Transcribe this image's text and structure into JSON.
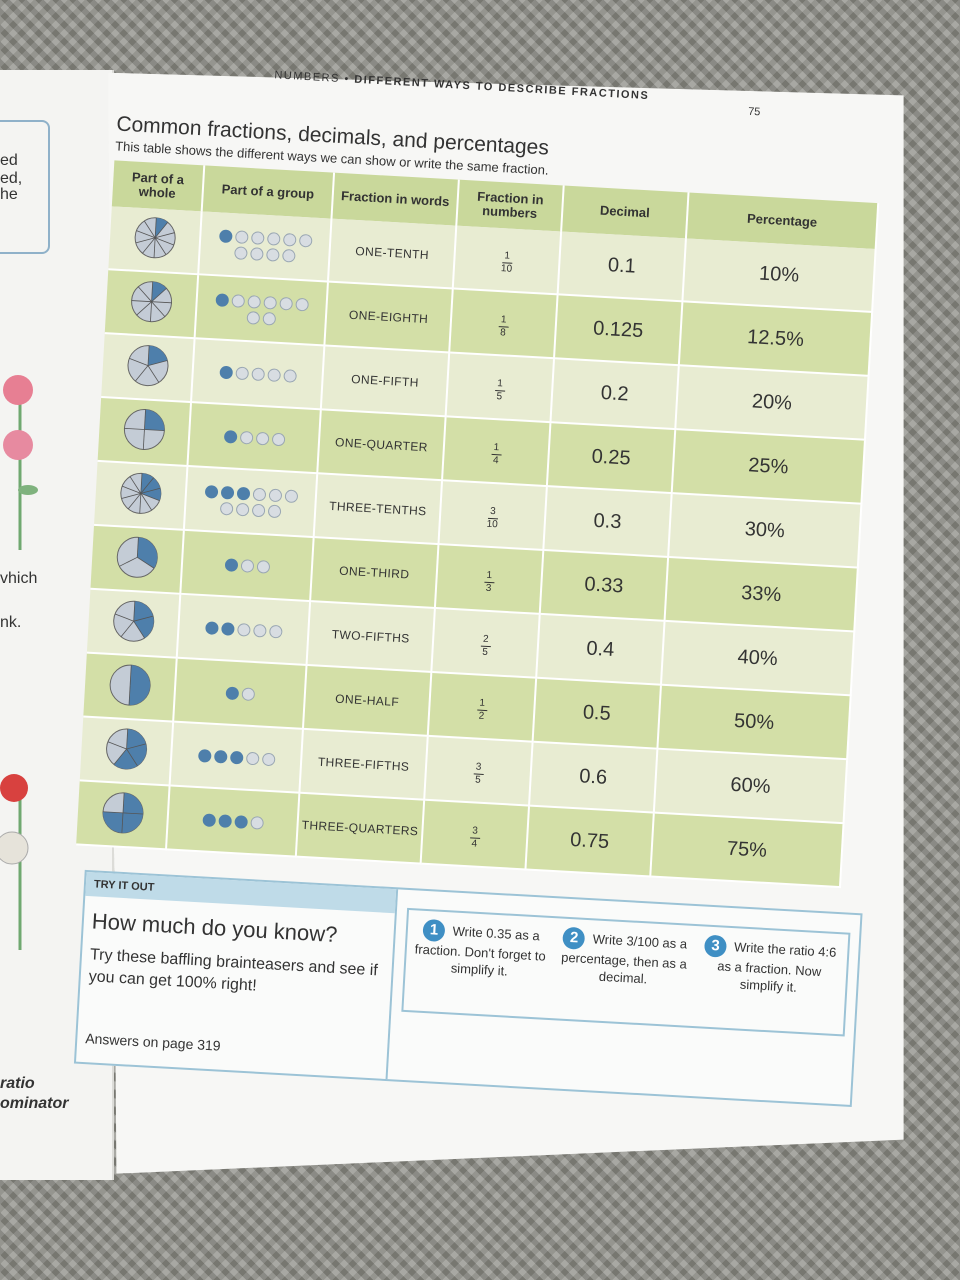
{
  "header": {
    "section": "NUMBERS",
    "separator": "•",
    "topic": "DIFFERENT WAYS TO DESCRIBE FRACTIONS",
    "page_number": "75"
  },
  "title": "Common fractions, decimals, and percentages",
  "subtitle": "This table shows the different ways we can show or write the same fraction.",
  "table": {
    "columns": [
      "Part of a whole",
      "Part of a group",
      "Fraction in words",
      "Fraction in numbers",
      "Decimal",
      "Percentage"
    ],
    "rows": [
      {
        "words": "ONE-TENTH",
        "num": "1",
        "den": "10",
        "decimal": "0.1",
        "percent": "10%",
        "filled": 1,
        "total": 10
      },
      {
        "words": "ONE-EIGHTH",
        "num": "1",
        "den": "8",
        "decimal": "0.125",
        "percent": "12.5%",
        "filled": 1,
        "total": 8
      },
      {
        "words": "ONE-FIFTH",
        "num": "1",
        "den": "5",
        "decimal": "0.2",
        "percent": "20%",
        "filled": 1,
        "total": 5
      },
      {
        "words": "ONE-QUARTER",
        "num": "1",
        "den": "4",
        "decimal": "0.25",
        "percent": "25%",
        "filled": 1,
        "total": 4
      },
      {
        "words": "THREE-TENTHS",
        "num": "3",
        "den": "10",
        "decimal": "0.3",
        "percent": "30%",
        "filled": 3,
        "total": 10
      },
      {
        "words": "ONE-THIRD",
        "num": "1",
        "den": "3",
        "decimal": "0.33",
        "percent": "33%",
        "filled": 1,
        "total": 3
      },
      {
        "words": "TWO-FIFTHS",
        "num": "2",
        "den": "5",
        "decimal": "0.4",
        "percent": "40%",
        "filled": 2,
        "total": 5
      },
      {
        "words": "ONE-HALF",
        "num": "1",
        "den": "2",
        "decimal": "0.5",
        "percent": "50%",
        "filled": 1,
        "total": 2
      },
      {
        "words": "THREE-FIFTHS",
        "num": "3",
        "den": "5",
        "decimal": "0.6",
        "percent": "60%",
        "filled": 3,
        "total": 5
      },
      {
        "words": "THREE-QUARTERS",
        "num": "3",
        "den": "4",
        "decimal": "0.75",
        "percent": "75%",
        "filled": 3,
        "total": 4
      }
    ]
  },
  "try_it_out": {
    "tag": "TRY IT OUT",
    "title": "How much do you know?",
    "body": "Try these baffling brainteasers and see if you can get 100% right!",
    "answers": "Answers on page 319",
    "questions": [
      {
        "num": "1",
        "text": "Write 0.35 as a fraction. Don't forget to simplify it."
      },
      {
        "num": "2",
        "text": "Write 3/100 as a percentage, then as a decimal."
      },
      {
        "num": "3",
        "text": "Write the ratio 4:6 as a fraction. Now simplify it."
      }
    ]
  },
  "left_page": {
    "fragments": [
      "ed",
      "ed,",
      "he",
      "vhich",
      "nk.",
      "ratio",
      "ominator"
    ]
  },
  "colors": {
    "header_green": "#c9d89b",
    "row_light": "#e8ecd2",
    "row_dark": "#d3dfa7",
    "dot_blue": "#4e7fab",
    "dot_grey": "#d8dde2",
    "box_blue": "#9cc3d6",
    "badge_blue": "#3f8fc4"
  }
}
